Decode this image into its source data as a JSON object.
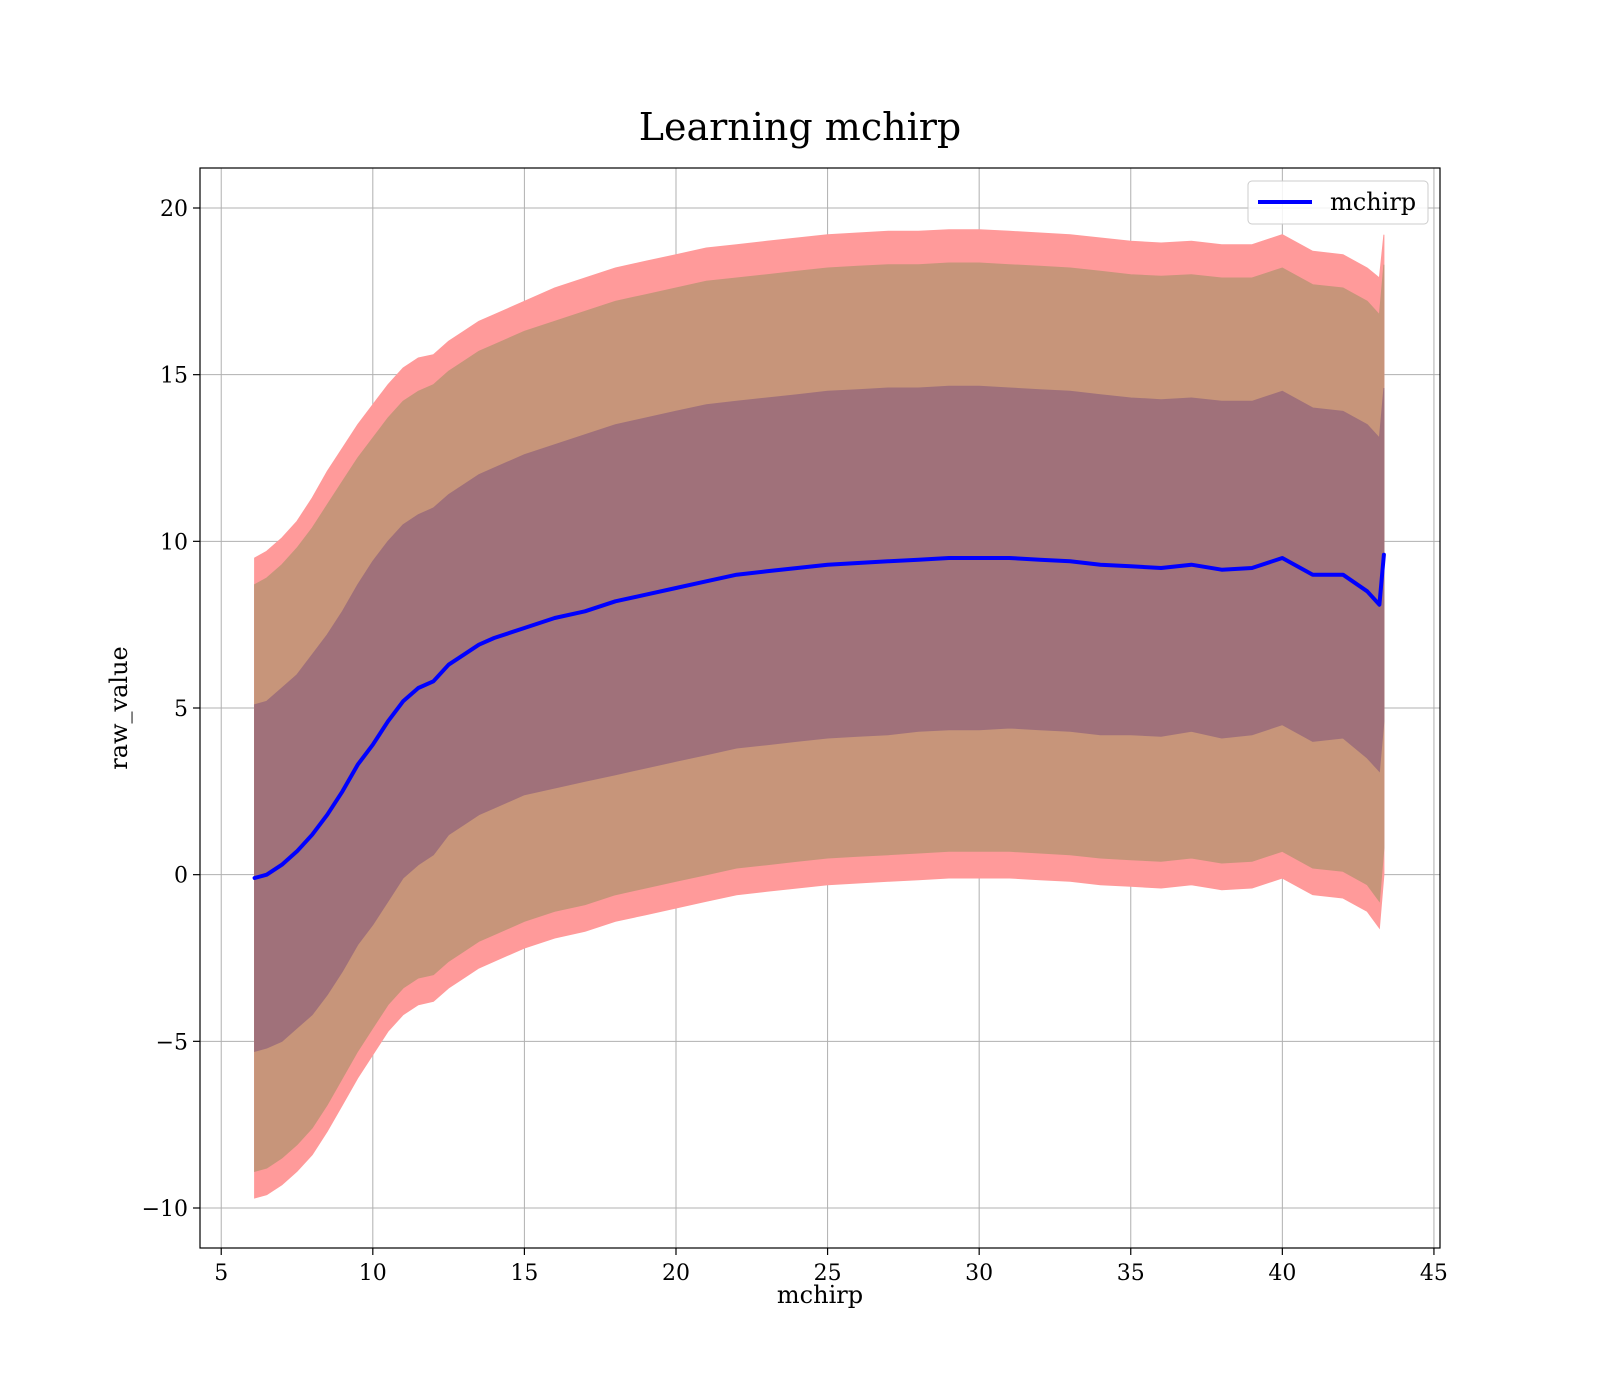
{
  "chart_data": {
    "type": "line",
    "title": "Learning mchirp",
    "xlabel": "mchirp",
    "ylabel": "raw_value",
    "xlim": [
      4.3,
      45.2
    ],
    "ylim": [
      -11.2,
      21.2
    ],
    "x_ticks": [
      5,
      10,
      15,
      20,
      25,
      30,
      35,
      40,
      45
    ],
    "y_ticks": [
      -10,
      -5,
      0,
      5,
      10,
      15,
      20
    ],
    "x_tick_labels": [
      "5",
      "10",
      "15",
      "20",
      "25",
      "30",
      "35",
      "40",
      "45"
    ],
    "y_tick_labels": [
      "−10",
      "−5",
      "0",
      "5",
      "10",
      "15",
      "20"
    ],
    "grid": true,
    "legend": {
      "placement": "top-right",
      "entries": [
        "mchirp"
      ]
    },
    "colors": {
      "line": "#0000ff",
      "outer_band": "#ff9a9a",
      "middle_band": "#c7957a",
      "inner_band": "#a0717a"
    },
    "series": [
      {
        "name": "mchirp",
        "x": [
          6.1,
          6.5,
          7.0,
          7.5,
          8.0,
          8.5,
          9.0,
          9.5,
          10.0,
          10.5,
          11.0,
          11.5,
          12.0,
          12.5,
          13.0,
          13.5,
          14.0,
          15.0,
          16.0,
          17.0,
          18.0,
          19.0,
          20.0,
          21.0,
          22.0,
          23.0,
          24.0,
          25.0,
          26.0,
          27.0,
          28.0,
          29.0,
          30.0,
          31.0,
          32.0,
          33.0,
          34.0,
          35.0,
          36.0,
          37.0,
          38.0,
          39.0,
          40.0,
          41.0,
          42.0,
          42.8,
          43.2,
          43.35
        ],
        "values": [
          -0.1,
          0.0,
          0.3,
          0.7,
          1.2,
          1.8,
          2.5,
          3.3,
          3.9,
          4.6,
          5.2,
          5.6,
          5.8,
          6.3,
          6.6,
          6.9,
          7.1,
          7.4,
          7.7,
          7.9,
          8.2,
          8.4,
          8.6,
          8.8,
          9.0,
          9.1,
          9.2,
          9.3,
          9.35,
          9.4,
          9.45,
          9.5,
          9.5,
          9.5,
          9.45,
          9.4,
          9.3,
          9.25,
          9.2,
          9.3,
          9.15,
          9.2,
          9.5,
          9.0,
          9.0,
          8.5,
          8.1,
          9.6
        ]
      }
    ],
    "bands": [
      {
        "level": "outer",
        "x": [
          6.1,
          6.5,
          7.0,
          7.5,
          8.0,
          8.5,
          9.0,
          9.5,
          10.0,
          10.5,
          11.0,
          11.5,
          12.0,
          12.5,
          13.0,
          13.5,
          14.0,
          15.0,
          16.0,
          17.0,
          18.0,
          19.0,
          20.0,
          21.0,
          22.0,
          23.0,
          24.0,
          25.0,
          26.0,
          27.0,
          28.0,
          29.0,
          30.0,
          31.0,
          32.0,
          33.0,
          34.0,
          35.0,
          36.0,
          37.0,
          38.0,
          39.0,
          40.0,
          41.0,
          42.0,
          42.8,
          43.2,
          43.35
        ],
        "upper": [
          9.5,
          9.7,
          10.1,
          10.6,
          11.3,
          12.1,
          12.8,
          13.5,
          14.1,
          14.7,
          15.2,
          15.5,
          15.6,
          16.0,
          16.3,
          16.6,
          16.8,
          17.2,
          17.6,
          17.9,
          18.2,
          18.4,
          18.6,
          18.8,
          18.9,
          19.0,
          19.1,
          19.2,
          19.25,
          19.3,
          19.3,
          19.35,
          19.35,
          19.3,
          19.25,
          19.2,
          19.1,
          19.0,
          18.95,
          19.0,
          18.9,
          18.9,
          19.2,
          18.7,
          18.6,
          18.2,
          17.9,
          19.2
        ],
        "lower": [
          -9.7,
          -9.6,
          -9.3,
          -8.9,
          -8.4,
          -7.7,
          -6.9,
          -6.1,
          -5.4,
          -4.7,
          -4.2,
          -3.9,
          -3.8,
          -3.4,
          -3.1,
          -2.8,
          -2.6,
          -2.2,
          -1.9,
          -1.7,
          -1.4,
          -1.2,
          -1.0,
          -0.8,
          -0.6,
          -0.5,
          -0.4,
          -0.3,
          -0.25,
          -0.2,
          -0.15,
          -0.1,
          -0.1,
          -0.1,
          -0.15,
          -0.2,
          -0.3,
          -0.35,
          -0.4,
          -0.3,
          -0.45,
          -0.4,
          -0.1,
          -0.6,
          -0.7,
          -1.1,
          -1.6,
          0.0
        ]
      },
      {
        "level": "middle",
        "x": [
          6.1,
          6.5,
          7.0,
          7.5,
          8.0,
          8.5,
          9.0,
          9.5,
          10.0,
          10.5,
          11.0,
          11.5,
          12.0,
          12.5,
          13.0,
          13.5,
          14.0,
          15.0,
          16.0,
          17.0,
          18.0,
          19.0,
          20.0,
          21.0,
          22.0,
          23.0,
          24.0,
          25.0,
          26.0,
          27.0,
          28.0,
          29.0,
          30.0,
          31.0,
          32.0,
          33.0,
          34.0,
          35.0,
          36.0,
          37.0,
          38.0,
          39.0,
          40.0,
          41.0,
          42.0,
          42.8,
          43.2,
          43.35
        ],
        "upper": [
          8.7,
          8.9,
          9.3,
          9.8,
          10.4,
          11.1,
          11.8,
          12.5,
          13.1,
          13.7,
          14.2,
          14.5,
          14.7,
          15.1,
          15.4,
          15.7,
          15.9,
          16.3,
          16.6,
          16.9,
          17.2,
          17.4,
          17.6,
          17.8,
          17.9,
          18.0,
          18.1,
          18.2,
          18.25,
          18.3,
          18.3,
          18.35,
          18.35,
          18.3,
          18.25,
          18.2,
          18.1,
          18.0,
          17.95,
          18.0,
          17.9,
          17.9,
          18.2,
          17.7,
          17.6,
          17.2,
          16.8,
          18.3
        ],
        "lower": [
          -8.9,
          -8.8,
          -8.5,
          -8.1,
          -7.6,
          -6.9,
          -6.1,
          -5.3,
          -4.6,
          -3.9,
          -3.4,
          -3.1,
          -3.0,
          -2.6,
          -2.3,
          -2.0,
          -1.8,
          -1.4,
          -1.1,
          -0.9,
          -0.6,
          -0.4,
          -0.2,
          0.0,
          0.2,
          0.3,
          0.4,
          0.5,
          0.55,
          0.6,
          0.65,
          0.7,
          0.7,
          0.7,
          0.65,
          0.6,
          0.5,
          0.45,
          0.4,
          0.5,
          0.35,
          0.4,
          0.7,
          0.2,
          0.1,
          -0.3,
          -0.8,
          0.8
        ]
      },
      {
        "level": "inner",
        "x": [
          6.1,
          6.5,
          7.0,
          7.5,
          8.0,
          8.5,
          9.0,
          9.5,
          10.0,
          10.5,
          11.0,
          11.5,
          12.0,
          12.5,
          13.0,
          13.5,
          14.0,
          15.0,
          16.0,
          17.0,
          18.0,
          19.0,
          20.0,
          21.0,
          22.0,
          23.0,
          24.0,
          25.0,
          26.0,
          27.0,
          28.0,
          29.0,
          30.0,
          31.0,
          32.0,
          33.0,
          34.0,
          35.0,
          36.0,
          37.0,
          38.0,
          39.0,
          40.0,
          41.0,
          42.0,
          42.8,
          43.2,
          43.35
        ],
        "upper": [
          5.1,
          5.2,
          5.6,
          6.0,
          6.6,
          7.2,
          7.9,
          8.7,
          9.4,
          10.0,
          10.5,
          10.8,
          11.0,
          11.4,
          11.7,
          12.0,
          12.2,
          12.6,
          12.9,
          13.2,
          13.5,
          13.7,
          13.9,
          14.1,
          14.2,
          14.3,
          14.4,
          14.5,
          14.55,
          14.6,
          14.6,
          14.65,
          14.65,
          14.6,
          14.55,
          14.5,
          14.4,
          14.3,
          14.25,
          14.3,
          14.2,
          14.2,
          14.5,
          14.0,
          13.9,
          13.5,
          13.1,
          14.6
        ],
        "lower": [
          -5.3,
          -5.2,
          -5.0,
          -4.6,
          -4.2,
          -3.6,
          -2.9,
          -2.1,
          -1.5,
          -0.8,
          -0.1,
          0.3,
          0.6,
          1.2,
          1.5,
          1.8,
          2.0,
          2.4,
          2.6,
          2.8,
          3.0,
          3.2,
          3.4,
          3.6,
          3.8,
          3.9,
          4.0,
          4.1,
          4.15,
          4.2,
          4.3,
          4.35,
          4.35,
          4.4,
          4.35,
          4.3,
          4.2,
          4.2,
          4.15,
          4.3,
          4.1,
          4.2,
          4.5,
          4.0,
          4.1,
          3.5,
          3.1,
          4.6
        ]
      }
    ]
  }
}
